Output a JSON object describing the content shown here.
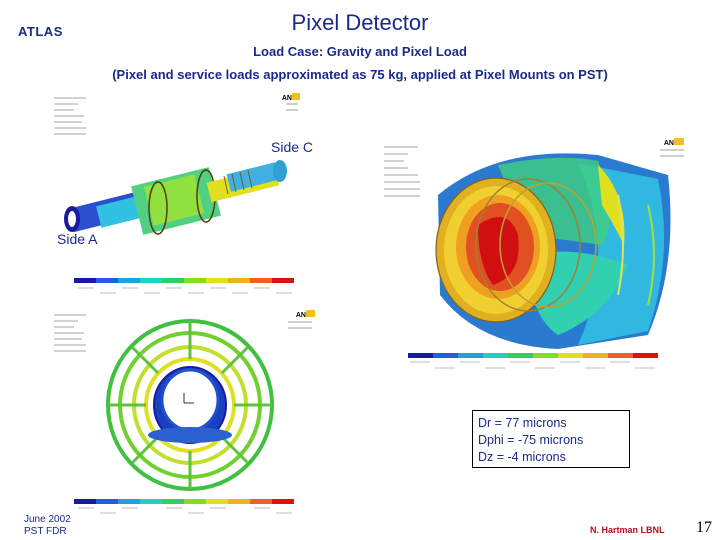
{
  "header": {
    "atlas": "ATLAS",
    "title": "Pixel Detector",
    "subtitle1": "Load Case: Gravity and Pixel Load",
    "subtitle2": "(Pixel and service loads approximated as 75 kg, applied at Pixel Mounts on PST)"
  },
  "labels": {
    "side_c": "Side C",
    "side_a": "Side A"
  },
  "results": {
    "dr": "Dr = 77 microns",
    "dphi": "Dphi = -75 microns",
    "dz": "Dz = -4 microns"
  },
  "footer": {
    "date": "June 2002",
    "project": "PST FDR",
    "author": "N. Hartman LBNL",
    "page": "17"
  },
  "colors": {
    "title": "#1a2a8a",
    "author": "#b01020",
    "scale": [
      "#1a1aa0",
      "#2060e0",
      "#20a0e0",
      "#20d0c0",
      "#30d060",
      "#80e020",
      "#e0e020",
      "#f0b020",
      "#f06020",
      "#e01010"
    ]
  }
}
